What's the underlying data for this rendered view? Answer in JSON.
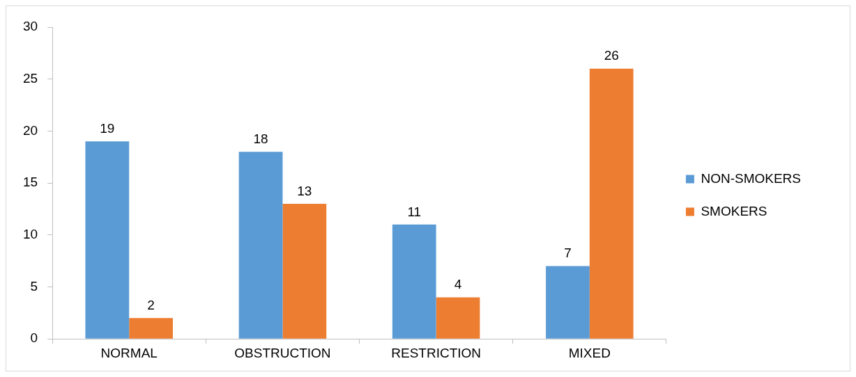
{
  "chart_data": {
    "type": "bar",
    "categories": [
      "NORMAL",
      "OBSTRUCTION",
      "RESTRICTION",
      "MIXED"
    ],
    "series": [
      {
        "name": "NON-SMOKERS",
        "color": "#5b9bd5",
        "values": [
          19,
          18,
          11,
          7
        ]
      },
      {
        "name": "SMOKERS",
        "color": "#ed7d31",
        "values": [
          2,
          13,
          4,
          26
        ]
      }
    ],
    "ylim": [
      0,
      30
    ],
    "yticks": [
      0,
      5,
      10,
      15,
      20,
      25,
      30
    ],
    "grid": false,
    "legend": "right",
    "data_labels": true
  }
}
